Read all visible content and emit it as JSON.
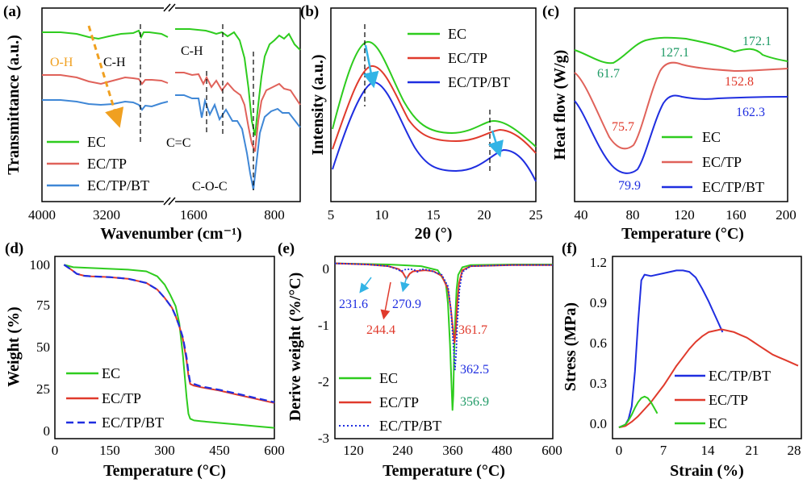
{
  "colors": {
    "green": "#2ecc1e",
    "red": "#e03a2c",
    "blue": "#1f2ee0",
    "lightred": "#e0625a",
    "lightblue": "#3f87d6",
    "orange": "#f0a020",
    "cyan": "#32b4e6",
    "teal": "#1f9a66"
  },
  "chart_data": [
    {
      "panel": "(a)",
      "type": "line",
      "xlabel": "Wavenumber (cm⁻¹)",
      "ylabel": "Transmittance (a.u.)",
      "xticks": [
        "4000",
        "3200",
        "1600",
        "800"
      ],
      "series": [
        {
          "name": "EC"
        },
        {
          "name": "EC/TP"
        },
        {
          "name": "EC/TP/BT"
        }
      ],
      "annotations": [
        "O-H",
        "C-H",
        "C-H",
        "C=C",
        "C-O-C"
      ]
    },
    {
      "panel": "(b)",
      "type": "line",
      "xlabel": "2θ (°)",
      "ylabel": "Intensity (a.u.)",
      "xticks": [
        "5",
        "10",
        "15",
        "20",
        "25"
      ],
      "xlim": [
        5,
        25
      ],
      "series": [
        {
          "name": "EC",
          "peaks": [
            8.2,
            20.5
          ]
        },
        {
          "name": "EC/TP",
          "peaks": [
            8.7,
            21.0
          ]
        },
        {
          "name": "EC/TP/BT",
          "peaks": [
            9.0,
            21.5
          ]
        }
      ]
    },
    {
      "panel": "(c)",
      "type": "line",
      "xlabel": "Temperature (°C)",
      "ylabel": "Heat flow (W/g)",
      "xticks": [
        "40",
        "80",
        "120",
        "160",
        "200"
      ],
      "xlim": [
        35,
        200
      ],
      "series": [
        {
          "name": "EC",
          "labels": [
            "61.7",
            "127.1",
            "172.1"
          ]
        },
        {
          "name": "EC/TP",
          "labels": [
            "75.7",
            "152.8"
          ]
        },
        {
          "name": "EC/TP/BT",
          "labels": [
            "79.9",
            "162.3"
          ]
        }
      ]
    },
    {
      "panel": "(d)",
      "type": "line",
      "xlabel": "Temperature (°C)",
      "ylabel": "Weight (%)",
      "xticks": [
        "0",
        "150",
        "300",
        "450",
        "600"
      ],
      "yticks": [
        "0",
        "25",
        "50",
        "75",
        "100"
      ],
      "xlim": [
        0,
        600
      ],
      "ylim": [
        -5,
        105
      ],
      "series": [
        {
          "name": "EC",
          "x": [
            25,
            50,
            100,
            150,
            200,
            250,
            280,
            300,
            315,
            330,
            340,
            350,
            360,
            365,
            370,
            380,
            400,
            450,
            500,
            550,
            600
          ],
          "y": [
            100,
            98.5,
            98,
            97.5,
            97,
            96,
            93,
            88,
            82,
            75,
            65,
            45,
            20,
            10,
            7,
            6,
            5.5,
            4.5,
            3.5,
            2.5,
            1.5
          ]
        },
        {
          "name": "EC/TP",
          "x": [
            25,
            45,
            60,
            80,
            100,
            150,
            200,
            250,
            280,
            300,
            320,
            330,
            340,
            350,
            360,
            365,
            370,
            380,
            400,
            450,
            500,
            550,
            600
          ],
          "y": [
            100,
            97,
            94.5,
            93.3,
            93,
            92.5,
            91.5,
            89,
            85,
            80,
            74,
            69,
            63,
            55,
            42,
            33,
            28,
            27,
            26,
            24,
            21.5,
            19,
            16.5
          ]
        },
        {
          "name": "EC/TP/BT",
          "x": [
            25,
            45,
            60,
            80,
            100,
            150,
            200,
            250,
            280,
            300,
            320,
            330,
            340,
            350,
            360,
            365,
            370,
            380,
            400,
            450,
            500,
            550,
            600
          ],
          "y": [
            100,
            97,
            94.5,
            93.3,
            93,
            92.5,
            91.5,
            89,
            85,
            80,
            74,
            69,
            63,
            56,
            44,
            35,
            29,
            28,
            26.5,
            24.5,
            22,
            19.5,
            17
          ]
        }
      ]
    },
    {
      "panel": "(e)",
      "type": "line",
      "xlabel": "Temperature (°C)",
      "ylabel": "Derive weight (%/°C)",
      "xticks": [
        "120",
        "240",
        "360",
        "480",
        "600"
      ],
      "yticks": [
        "-3",
        "-2",
        "-1",
        "0"
      ],
      "xlim": [
        70,
        600
      ],
      "ylim": [
        -3.05,
        0.12
      ],
      "series": [
        {
          "name": "EC",
          "peak_label": "356.9",
          "x": [
            70,
            200,
            280,
            320,
            340,
            345,
            350,
            353,
            356,
            358,
            360,
            363,
            366,
            370,
            380,
            400,
            500,
            600
          ],
          "y": [
            0,
            -0.02,
            -0.05,
            -0.12,
            -0.35,
            -0.7,
            -1.4,
            -2.0,
            -2.55,
            -2.3,
            -1.6,
            -0.9,
            -0.45,
            -0.2,
            -0.07,
            -0.03,
            -0.02,
            -0.02
          ]
        },
        {
          "name": "EC/TP",
          "peak_label": "361.7",
          "extra_label": "244.4",
          "x": [
            70,
            150,
            200,
            225,
            235,
            244,
            252,
            260,
            275,
            290,
            310,
            330,
            345,
            352,
            358,
            361,
            364,
            367,
            372,
            380,
            400,
            500,
            600
          ],
          "y": [
            0,
            -0.02,
            -0.05,
            -0.1,
            -0.16,
            -0.27,
            -0.18,
            -0.14,
            -0.13,
            -0.12,
            -0.14,
            -0.22,
            -0.45,
            -0.8,
            -1.2,
            -1.38,
            -1.2,
            -0.75,
            -0.35,
            -0.12,
            -0.05,
            -0.03,
            -0.03
          ]
        },
        {
          "name": "EC/TP/BT",
          "peak_label": "362.5",
          "extra_labels": [
            "231.6",
            "270.9"
          ],
          "x": [
            70,
            150,
            200,
            220,
            231,
            240,
            255,
            265,
            271,
            280,
            300,
            330,
            345,
            352,
            358,
            362,
            365,
            368,
            373,
            380,
            400,
            500,
            600
          ],
          "y": [
            0,
            -0.02,
            -0.05,
            -0.1,
            -0.14,
            -0.11,
            -0.1,
            -0.12,
            -0.15,
            -0.1,
            -0.12,
            -0.2,
            -0.4,
            -0.8,
            -1.4,
            -1.85,
            -1.55,
            -1.0,
            -0.45,
            -0.15,
            -0.05,
            -0.03,
            -0.03
          ]
        }
      ]
    },
    {
      "panel": "(f)",
      "type": "line",
      "xlabel": "Strain (%)",
      "ylabel": "Stress (MPa)",
      "xticks": [
        "0",
        "7",
        "14",
        "21",
        "28"
      ],
      "yticks": [
        "0.0",
        "0.3",
        "0.6",
        "0.9",
        "1.2"
      ],
      "xlim": [
        -1,
        28.5
      ],
      "ylim": [
        -0.08,
        1.22
      ],
      "series": [
        {
          "name": "EC/TP/BT",
          "x": [
            0,
            1,
            1.5,
            2,
            2.5,
            3,
            3.5,
            4,
            5,
            7,
            9,
            10,
            11,
            12,
            13,
            14,
            15,
            16.2
          ],
          "y": [
            0,
            0.02,
            0.06,
            0.15,
            0.4,
            0.75,
            1.05,
            1.09,
            1.08,
            1.1,
            1.12,
            1.12,
            1.11,
            1.07,
            0.99,
            0.9,
            0.8,
            0.68
          ]
        },
        {
          "name": "EC/TP",
          "x": [
            0,
            1,
            2,
            3,
            4,
            5,
            6,
            7,
            8,
            9,
            10,
            11,
            12,
            13,
            14,
            15,
            16,
            17,
            18,
            19,
            20,
            21,
            22,
            23,
            24,
            25,
            26,
            27,
            28
          ],
          "y": [
            0,
            0.01,
            0.04,
            0.08,
            0.13,
            0.18,
            0.24,
            0.3,
            0.37,
            0.44,
            0.5,
            0.56,
            0.61,
            0.65,
            0.68,
            0.69,
            0.7,
            0.69,
            0.68,
            0.66,
            0.64,
            0.61,
            0.58,
            0.55,
            0.52,
            0.5,
            0.48,
            0.46,
            0.44
          ]
        },
        {
          "name": "EC",
          "x": [
            0,
            0.5,
            1,
            1.5,
            2,
            2.5,
            3,
            3.5,
            4,
            4.5,
            5,
            5.5,
            6
          ],
          "y": [
            0,
            0.01,
            0.02,
            0.05,
            0.09,
            0.14,
            0.18,
            0.21,
            0.22,
            0.21,
            0.18,
            0.14,
            0.1
          ]
        }
      ]
    }
  ]
}
